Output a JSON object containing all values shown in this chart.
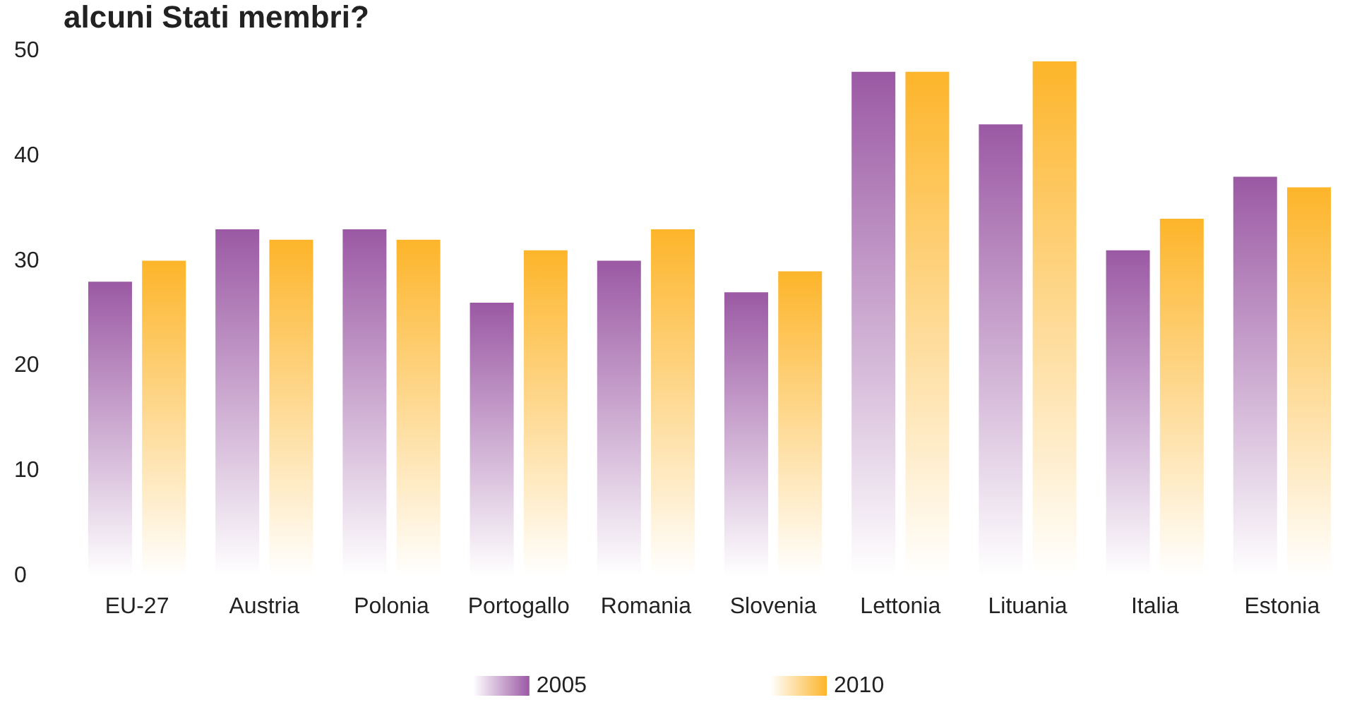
{
  "chart_data": {
    "type": "bar",
    "title": "alcuni Stati membri?",
    "categories": [
      "EU-27",
      "Austria",
      "Polonia",
      "Portogallo",
      "Romania",
      "Slovenia",
      "Lettonia",
      "Lituania",
      "Italia",
      "Estonia"
    ],
    "series": [
      {
        "name": "2005",
        "color": "#9b59a4",
        "values": [
          28,
          33,
          33,
          26,
          30,
          27,
          48,
          43,
          31,
          38
        ]
      },
      {
        "name": "2010",
        "color": "#fdb52a",
        "values": [
          30,
          32,
          32,
          31,
          33,
          29,
          48,
          49,
          34,
          37
        ]
      }
    ],
    "ylim": [
      0,
      50
    ],
    "yticks": [
      0,
      10,
      20,
      30,
      40,
      50
    ],
    "grid": false,
    "legend": "bottom"
  }
}
